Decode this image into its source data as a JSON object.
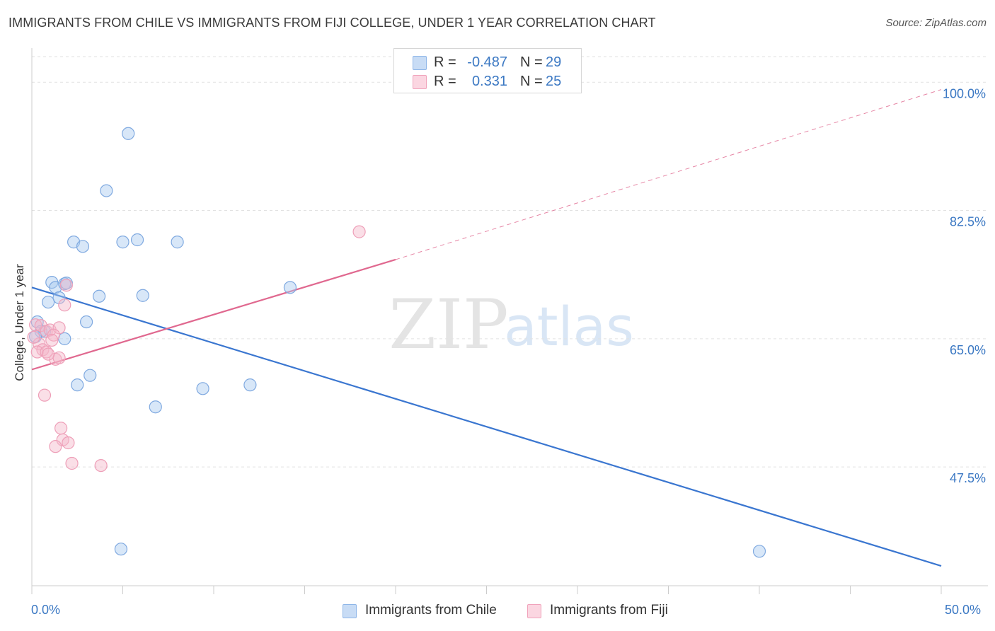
{
  "header": {
    "title": "IMMIGRANTS FROM CHILE VS IMMIGRANTS FROM FIJI COLLEGE, UNDER 1 YEAR CORRELATION CHART",
    "source": "Source: ZipAtlas.com"
  },
  "watermark": "ZIPatlas",
  "legend": {
    "rows": [
      {
        "r_label": "R =",
        "r_value": "-0.487",
        "n_label": "N =",
        "n_value": "29",
        "color": "#a9c9f0"
      },
      {
        "r_label": "R =",
        "r_value": "0.331",
        "n_label": "N =",
        "n_value": "25",
        "color": "#f5b8c9"
      }
    ]
  },
  "bottom_legend": {
    "items": [
      {
        "label": "Immigrants from Chile",
        "color": "#a9c9f0"
      },
      {
        "label": "Immigrants from Fiji",
        "color": "#f5b8c9"
      }
    ]
  },
  "chart_data": {
    "type": "scatter",
    "title": "IMMIGRANTS FROM CHILE VS IMMIGRANTS FROM FIJI COLLEGE, UNDER 1 YEAR CORRELATION CHART",
    "xlabel": "",
    "ylabel": "College, Under 1 year",
    "xlim": [
      0,
      50
    ],
    "ylim": [
      31.3,
      103.5
    ],
    "x_tick_labels": [
      "0.0%",
      "50.0%"
    ],
    "y_ticks": [
      47.5,
      65.0,
      82.5,
      100.0
    ],
    "y_tick_labels": [
      "47.5%",
      "65.0%",
      "82.5%",
      "100.0%"
    ],
    "grid": true,
    "legend_position": "top-center",
    "series": [
      {
        "name": "Immigrants from Chile",
        "color": "#a9c9f0",
        "line_color": "#3a76d0",
        "trend": {
          "x": [
            0,
            50
          ],
          "y": [
            72.0,
            34.0
          ]
        },
        "points": [
          {
            "x": 5.3,
            "y": 93.0
          },
          {
            "x": 4.1,
            "y": 85.2
          },
          {
            "x": 2.3,
            "y": 78.2
          },
          {
            "x": 2.8,
            "y": 77.6
          },
          {
            "x": 5.0,
            "y": 78.2
          },
          {
            "x": 5.8,
            "y": 78.5
          },
          {
            "x": 8.0,
            "y": 78.2
          },
          {
            "x": 1.1,
            "y": 72.7
          },
          {
            "x": 1.3,
            "y": 72.0
          },
          {
            "x": 1.8,
            "y": 72.5
          },
          {
            "x": 1.9,
            "y": 72.6
          },
          {
            "x": 1.5,
            "y": 70.6
          },
          {
            "x": 0.9,
            "y": 70.0
          },
          {
            "x": 3.7,
            "y": 70.8
          },
          {
            "x": 6.1,
            "y": 70.9
          },
          {
            "x": 14.2,
            "y": 72.0
          },
          {
            "x": 0.3,
            "y": 67.3
          },
          {
            "x": 0.7,
            "y": 66.0
          },
          {
            "x": 3.0,
            "y": 67.3
          },
          {
            "x": 0.5,
            "y": 66.0
          },
          {
            "x": 1.8,
            "y": 65.0
          },
          {
            "x": 0.2,
            "y": 65.3
          },
          {
            "x": 3.2,
            "y": 60.0
          },
          {
            "x": 2.5,
            "y": 58.7
          },
          {
            "x": 9.4,
            "y": 58.2
          },
          {
            "x": 12.0,
            "y": 58.7
          },
          {
            "x": 6.8,
            "y": 55.7
          },
          {
            "x": 4.9,
            "y": 36.3
          },
          {
            "x": 40.0,
            "y": 36.0
          }
        ]
      },
      {
        "name": "Immigrants from Fiji",
        "color": "#f5b8c9",
        "line_color": "#e0688f",
        "trend": {
          "x": [
            0,
            20
          ],
          "y": [
            60.8,
            75.8
          ]
        },
        "trend_extension": {
          "x": [
            20,
            50
          ],
          "y": [
            75.8,
            99.0
          ]
        },
        "points": [
          {
            "x": 18.0,
            "y": 79.6
          },
          {
            "x": 1.9,
            "y": 72.3
          },
          {
            "x": 1.8,
            "y": 69.6
          },
          {
            "x": 0.2,
            "y": 66.9
          },
          {
            "x": 0.5,
            "y": 66.8
          },
          {
            "x": 0.8,
            "y": 66.0
          },
          {
            "x": 1.0,
            "y": 66.2
          },
          {
            "x": 1.5,
            "y": 66.5
          },
          {
            "x": 1.2,
            "y": 65.5
          },
          {
            "x": 0.4,
            "y": 64.3
          },
          {
            "x": 0.6,
            "y": 63.5
          },
          {
            "x": 0.3,
            "y": 63.2
          },
          {
            "x": 0.8,
            "y": 63.2
          },
          {
            "x": 1.3,
            "y": 62.2
          },
          {
            "x": 1.5,
            "y": 62.4
          },
          {
            "x": 0.7,
            "y": 57.3
          },
          {
            "x": 1.6,
            "y": 52.8
          },
          {
            "x": 1.7,
            "y": 51.2
          },
          {
            "x": 2.0,
            "y": 50.8
          },
          {
            "x": 1.3,
            "y": 50.3
          },
          {
            "x": 2.2,
            "y": 48.0
          },
          {
            "x": 3.8,
            "y": 47.7
          },
          {
            "x": 0.1,
            "y": 65.2
          },
          {
            "x": 1.1,
            "y": 64.8
          },
          {
            "x": 0.9,
            "y": 62.9
          }
        ]
      }
    ]
  }
}
